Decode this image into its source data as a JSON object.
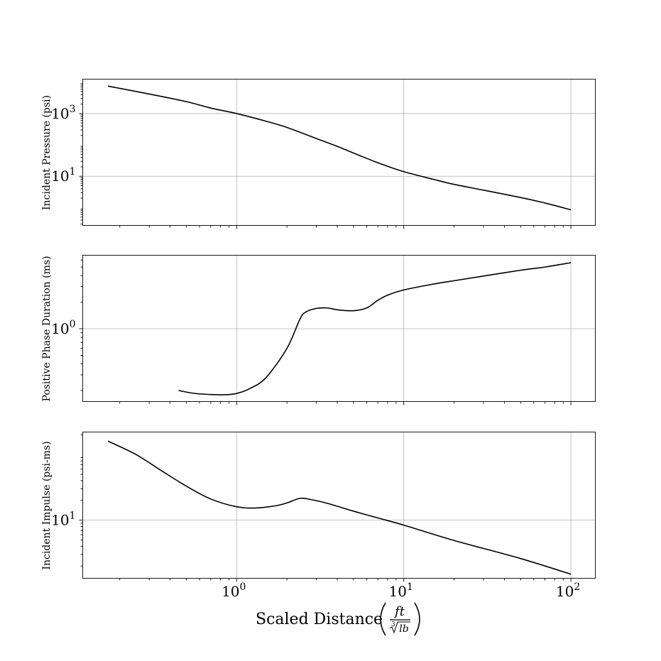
{
  "chart_data": [
    {
      "type": "line",
      "ylabel": "Incident Pressure (psi)",
      "xscale": "log",
      "yscale": "log",
      "xlim": [
        0.12,
        140
      ],
      "ylim": [
        0.27,
        12500
      ],
      "yticks": [
        {
          "value": 1000,
          "base": "10",
          "exp": "3"
        },
        {
          "value": 10,
          "base": "10",
          "exp": "1"
        }
      ],
      "grid": true,
      "series": [
        {
          "name": "Incident Pressure",
          "color": "#000000",
          "x": [
            0.17,
            0.3,
            0.5,
            0.7,
            1.0,
            1.5,
            2.0,
            3.0,
            4.0,
            5.0,
            7.0,
            10,
            15,
            20,
            30,
            50,
            70,
            100
          ],
          "y": [
            7500,
            4200,
            2400,
            1500,
            1000,
            570,
            360,
            160,
            90,
            55,
            27,
            14,
            8,
            5.5,
            3.6,
            2.1,
            1.4,
            0.85
          ]
        }
      ]
    },
    {
      "type": "line",
      "ylabel": "Positive Phase Duration (ms)",
      "xscale": "log",
      "yscale": "log",
      "xlim": [
        0.12,
        140
      ],
      "ylim": [
        0.15,
        6.8
      ],
      "yticks": [
        {
          "value": 1,
          "base": "10",
          "exp": "0"
        }
      ],
      "grid": true,
      "series": [
        {
          "name": "Positive Phase Duration",
          "color": "#000000",
          "x": [
            0.45,
            0.55,
            0.7,
            0.85,
            1.0,
            1.2,
            1.5,
            2.0,
            2.4,
            2.6,
            3.0,
            3.5,
            4.0,
            5.0,
            6.0,
            7.0,
            8.0,
            10,
            15,
            20,
            30,
            50,
            70,
            100
          ],
          "y": [
            0.2,
            0.186,
            0.18,
            0.179,
            0.185,
            0.21,
            0.28,
            0.6,
            1.3,
            1.55,
            1.7,
            1.72,
            1.64,
            1.6,
            1.72,
            2.1,
            2.4,
            2.75,
            3.2,
            3.5,
            3.95,
            4.6,
            5.0,
            5.6
          ]
        }
      ]
    },
    {
      "type": "line",
      "ylabel": "Incident Impulse (psi-ms)",
      "xscale": "log",
      "yscale": "log",
      "xlim": [
        0.12,
        140
      ],
      "ylim": [
        1.3,
        220
      ],
      "yticks": [
        {
          "value": 10,
          "base": "10",
          "exp": "1"
        }
      ],
      "grid": true,
      "series": [
        {
          "name": "Incident Impulse",
          "color": "#000000",
          "x": [
            0.17,
            0.25,
            0.35,
            0.5,
            0.7,
            1.0,
            1.3,
            1.7,
            2.0,
            2.4,
            2.8,
            3.5,
            5.0,
            7.0,
            10,
            20,
            50,
            100
          ],
          "y": [
            160,
            100,
            58,
            33,
            21,
            16,
            15.3,
            16.5,
            18.3,
            21.5,
            20.5,
            18,
            13.7,
            10.8,
            8.4,
            4.9,
            2.6,
            1.5
          ]
        }
      ]
    }
  ],
  "xaxis": {
    "label_main": "Scaled Distance",
    "label_frac_num": "ft",
    "label_frac_den": "lb",
    "label_root_index": "3",
    "xticks": [
      {
        "value": 1,
        "base": "10",
        "exp": "0"
      },
      {
        "value": 10,
        "base": "10",
        "exp": "1"
      },
      {
        "value": 100,
        "base": "10",
        "exp": "2"
      }
    ]
  }
}
